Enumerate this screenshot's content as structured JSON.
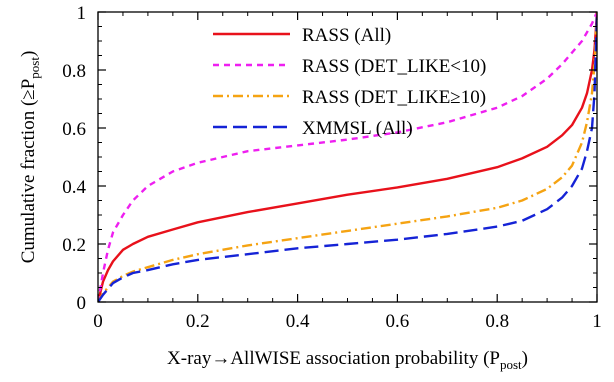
{
  "chart_data": {
    "type": "line",
    "xlabel": {
      "main": "X-ray→AllWISE association probability (P",
      "sub": "post",
      "tail": ")"
    },
    "ylabel": {
      "main": "Cumulative fraction (≥P",
      "sub": "post",
      "tail": ")"
    },
    "xlim": [
      0,
      1
    ],
    "ylim": [
      0,
      1
    ],
    "xticks": [
      "0",
      "0.2",
      "0.4",
      "0.6",
      "0.8",
      "1"
    ],
    "yticks": [
      "0",
      "0.2",
      "0.4",
      "0.6",
      "0.8",
      "1"
    ],
    "legend_position": "top-left",
    "series": [
      {
        "name": "RASS (All)",
        "color": "#e8111b",
        "dash": "solid",
        "x": [
          0.0,
          0.01,
          0.02,
          0.03,
          0.05,
          0.07,
          0.1,
          0.15,
          0.2,
          0.3,
          0.4,
          0.5,
          0.6,
          0.7,
          0.8,
          0.85,
          0.9,
          0.93,
          0.95,
          0.97,
          0.98,
          0.99,
          0.995,
          1.0
        ],
        "y": [
          0.0,
          0.07,
          0.11,
          0.14,
          0.18,
          0.2,
          0.225,
          0.25,
          0.275,
          0.31,
          0.34,
          0.37,
          0.395,
          0.425,
          0.465,
          0.495,
          0.535,
          0.575,
          0.61,
          0.67,
          0.72,
          0.8,
          0.87,
          1.0
        ]
      },
      {
        "name": "RASS (DET_LIKE<10)",
        "color": "#ee1ff0",
        "dash": "dashed",
        "x": [
          0.0,
          0.01,
          0.02,
          0.03,
          0.05,
          0.07,
          0.1,
          0.15,
          0.2,
          0.3,
          0.4,
          0.5,
          0.6,
          0.7,
          0.8,
          0.85,
          0.9,
          0.93,
          0.95,
          0.97,
          0.98,
          0.99,
          0.995,
          1.0
        ],
        "y": [
          0.0,
          0.1,
          0.18,
          0.24,
          0.3,
          0.35,
          0.4,
          0.45,
          0.48,
          0.52,
          0.54,
          0.56,
          0.585,
          0.62,
          0.67,
          0.71,
          0.77,
          0.82,
          0.86,
          0.9,
          0.93,
          0.96,
          0.98,
          1.0
        ]
      },
      {
        "name": "RASS (DET_LIKE≥10)",
        "color": "#f5a312",
        "dash": "dashdot",
        "x": [
          0.0,
          0.01,
          0.02,
          0.03,
          0.05,
          0.07,
          0.1,
          0.15,
          0.2,
          0.3,
          0.4,
          0.5,
          0.6,
          0.7,
          0.8,
          0.85,
          0.9,
          0.93,
          0.95,
          0.97,
          0.98,
          0.99,
          0.995,
          1.0
        ],
        "y": [
          0.0,
          0.03,
          0.05,
          0.07,
          0.09,
          0.105,
          0.12,
          0.145,
          0.165,
          0.195,
          0.22,
          0.245,
          0.27,
          0.295,
          0.325,
          0.35,
          0.39,
          0.43,
          0.47,
          0.55,
          0.62,
          0.72,
          0.82,
          1.0
        ]
      },
      {
        "name": "XMMSL (All)",
        "color": "#1523d6",
        "dash": "longdash",
        "x": [
          0.0,
          0.01,
          0.02,
          0.03,
          0.05,
          0.07,
          0.1,
          0.15,
          0.2,
          0.3,
          0.4,
          0.5,
          0.6,
          0.7,
          0.8,
          0.85,
          0.9,
          0.93,
          0.95,
          0.97,
          0.98,
          0.99,
          0.995,
          1.0
        ],
        "y": [
          0.0,
          0.025,
          0.045,
          0.065,
          0.085,
          0.1,
          0.11,
          0.13,
          0.145,
          0.165,
          0.185,
          0.2,
          0.215,
          0.235,
          0.26,
          0.28,
          0.32,
          0.36,
          0.4,
          0.46,
          0.52,
          0.6,
          0.72,
          1.0
        ]
      }
    ]
  }
}
